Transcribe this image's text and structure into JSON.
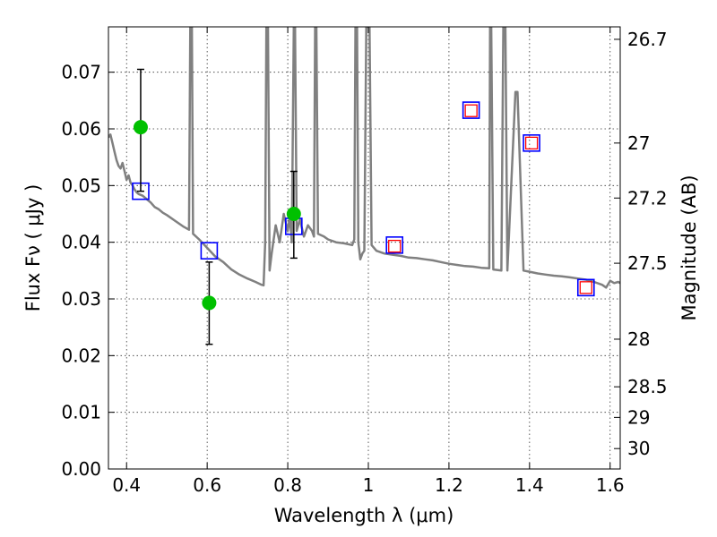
{
  "chart_data": {
    "type": "scatter",
    "title": "",
    "xlabel": "Wavelength  λ (μm)",
    "ylabel": "Flux  Fν  ( μJy )",
    "y2label": "Magnitude (AB)",
    "xlim": [
      0.355,
      1.625
    ],
    "ylim": [
      0.0,
      0.078
    ],
    "grid": true,
    "x_ticks": [
      {
        "v": 0.4,
        "label": "0.4"
      },
      {
        "v": 0.6,
        "label": "0.6"
      },
      {
        "v": 0.8,
        "label": "0.8"
      },
      {
        "v": 1.0,
        "label": "1"
      },
      {
        "v": 1.2,
        "label": "1.2"
      },
      {
        "v": 1.4,
        "label": "1.4"
      },
      {
        "v": 1.6,
        "label": "1.6"
      }
    ],
    "y_ticks": [
      {
        "v": 0.0,
        "label": "0.00"
      },
      {
        "v": 0.01,
        "label": "0.01"
      },
      {
        "v": 0.02,
        "label": "0.02"
      },
      {
        "v": 0.03,
        "label": "0.03"
      },
      {
        "v": 0.04,
        "label": "0.04"
      },
      {
        "v": 0.05,
        "label": "0.05"
      },
      {
        "v": 0.06,
        "label": "0.06"
      },
      {
        "v": 0.07,
        "label": "0.07"
      }
    ],
    "y2_ticks": [
      {
        "label": "26.7",
        "flux": 0.0758
      },
      {
        "label": "27",
        "flux": 0.0575
      },
      {
        "label": "27.2",
        "flux": 0.0478
      },
      {
        "label": "27.5",
        "flux": 0.0363
      },
      {
        "label": "28",
        "flux": 0.0229
      },
      {
        "label": "28.5",
        "flux": 0.0145
      },
      {
        "label": "29",
        "flux": 0.0091
      },
      {
        "label": "30",
        "flux": 0.0036
      }
    ],
    "model_spectrum": {
      "color": "#808080",
      "points": [
        [
          0.355,
          0.0585
        ],
        [
          0.36,
          0.059
        ],
        [
          0.365,
          0.0575
        ],
        [
          0.37,
          0.056
        ],
        [
          0.375,
          0.0545
        ],
        [
          0.38,
          0.0535
        ],
        [
          0.385,
          0.053
        ],
        [
          0.39,
          0.054
        ],
        [
          0.395,
          0.0525
        ],
        [
          0.4,
          0.051
        ],
        [
          0.405,
          0.0518
        ],
        [
          0.41,
          0.0505
        ],
        [
          0.415,
          0.05
        ],
        [
          0.42,
          0.0493
        ],
        [
          0.425,
          0.0488
        ],
        [
          0.43,
          0.0485
        ],
        [
          0.44,
          0.0482
        ],
        [
          0.45,
          0.0476
        ],
        [
          0.46,
          0.047
        ],
        [
          0.47,
          0.0462
        ],
        [
          0.48,
          0.0458
        ],
        [
          0.49,
          0.0452
        ],
        [
          0.5,
          0.0448
        ],
        [
          0.52,
          0.0438
        ],
        [
          0.54,
          0.0428
        ],
        [
          0.555,
          0.0422
        ],
        [
          0.558,
          0.078
        ],
        [
          0.562,
          0.078
        ],
        [
          0.565,
          0.0415
        ],
        [
          0.58,
          0.0405
        ],
        [
          0.6,
          0.039
        ],
        [
          0.62,
          0.0375
        ],
        [
          0.64,
          0.0365
        ],
        [
          0.66,
          0.0352
        ],
        [
          0.68,
          0.0343
        ],
        [
          0.7,
          0.0336
        ],
        [
          0.72,
          0.033
        ],
        [
          0.735,
          0.0325
        ],
        [
          0.74,
          0.0324
        ],
        [
          0.744,
          0.04
        ],
        [
          0.747,
          0.078
        ],
        [
          0.751,
          0.078
        ],
        [
          0.755,
          0.035
        ],
        [
          0.76,
          0.038
        ],
        [
          0.77,
          0.043
        ],
        [
          0.78,
          0.04
        ],
        [
          0.79,
          0.045
        ],
        [
          0.8,
          0.042
        ],
        [
          0.805,
          0.0445
        ],
        [
          0.81,
          0.04
        ],
        [
          0.815,
          0.078
        ],
        [
          0.818,
          0.078
        ],
        [
          0.822,
          0.042
        ],
        [
          0.83,
          0.044
        ],
        [
          0.84,
          0.041
        ],
        [
          0.85,
          0.043
        ],
        [
          0.86,
          0.042
        ],
        [
          0.865,
          0.041
        ],
        [
          0.868,
          0.078
        ],
        [
          0.871,
          0.078
        ],
        [
          0.875,
          0.0415
        ],
        [
          0.89,
          0.041
        ],
        [
          0.9,
          0.0405
        ],
        [
          0.92,
          0.04
        ],
        [
          0.94,
          0.0398
        ],
        [
          0.96,
          0.0395
        ],
        [
          0.965,
          0.0405
        ],
        [
          0.968,
          0.078
        ],
        [
          0.972,
          0.078
        ],
        [
          0.975,
          0.04
        ],
        [
          0.98,
          0.037
        ],
        [
          0.985,
          0.038
        ],
        [
          0.99,
          0.0385
        ],
        [
          0.995,
          0.078
        ],
        [
          1.003,
          0.078
        ],
        [
          1.008,
          0.0395
        ],
        [
          1.02,
          0.0385
        ],
        [
          1.04,
          0.038
        ],
        [
          1.06,
          0.0378
        ],
        [
          1.08,
          0.0376
        ],
        [
          1.1,
          0.0373
        ],
        [
          1.12,
          0.0372
        ],
        [
          1.14,
          0.037
        ],
        [
          1.16,
          0.0368
        ],
        [
          1.18,
          0.0365
        ],
        [
          1.2,
          0.0362
        ],
        [
          1.22,
          0.036
        ],
        [
          1.24,
          0.0358
        ],
        [
          1.26,
          0.0357
        ],
        [
          1.28,
          0.0355
        ],
        [
          1.3,
          0.0354
        ],
        [
          1.302,
          0.078
        ],
        [
          1.305,
          0.078
        ],
        [
          1.31,
          0.0352
        ],
        [
          1.33,
          0.035
        ],
        [
          1.335,
          0.078
        ],
        [
          1.34,
          0.078
        ],
        [
          1.345,
          0.035
        ],
        [
          1.365,
          0.0665
        ],
        [
          1.37,
          0.0665
        ],
        [
          1.385,
          0.035
        ],
        [
          1.4,
          0.0348
        ],
        [
          1.42,
          0.0345
        ],
        [
          1.44,
          0.0343
        ],
        [
          1.46,
          0.0341
        ],
        [
          1.48,
          0.034
        ],
        [
          1.5,
          0.0338
        ],
        [
          1.52,
          0.0336
        ],
        [
          1.54,
          0.0334
        ],
        [
          1.56,
          0.033
        ],
        [
          1.58,
          0.0325
        ],
        [
          1.59,
          0.032
        ],
        [
          1.6,
          0.0332
        ],
        [
          1.61,
          0.0328
        ],
        [
          1.62,
          0.033
        ],
        [
          1.625,
          0.0328
        ]
      ]
    },
    "model_photometry": {
      "marker": "open-square",
      "color": "#0000ff",
      "points": [
        [
          0.435,
          0.049
        ],
        [
          0.605,
          0.0385
        ],
        [
          0.815,
          0.0428
        ],
        [
          1.065,
          0.0395
        ],
        [
          1.255,
          0.0633
        ],
        [
          1.405,
          0.0575
        ],
        [
          1.54,
          0.032
        ]
      ]
    },
    "nir_photometry": {
      "marker": "open-square",
      "color": "#ff0000",
      "points": [
        [
          1.065,
          0.0393
        ],
        [
          1.255,
          0.0632
        ],
        [
          1.405,
          0.0575
        ],
        [
          1.54,
          0.032
        ]
      ]
    },
    "observed": {
      "marker": "circle",
      "color": "#00c000",
      "points": [
        {
          "x": 0.435,
          "y": 0.0603,
          "err_low": 0.049,
          "err_high": 0.0705
        },
        {
          "x": 0.605,
          "y": 0.0293,
          "err_low": 0.022,
          "err_high": 0.0365
        },
        {
          "x": 0.815,
          "y": 0.045,
          "err_low": 0.0372,
          "err_high": 0.0525
        }
      ]
    }
  }
}
